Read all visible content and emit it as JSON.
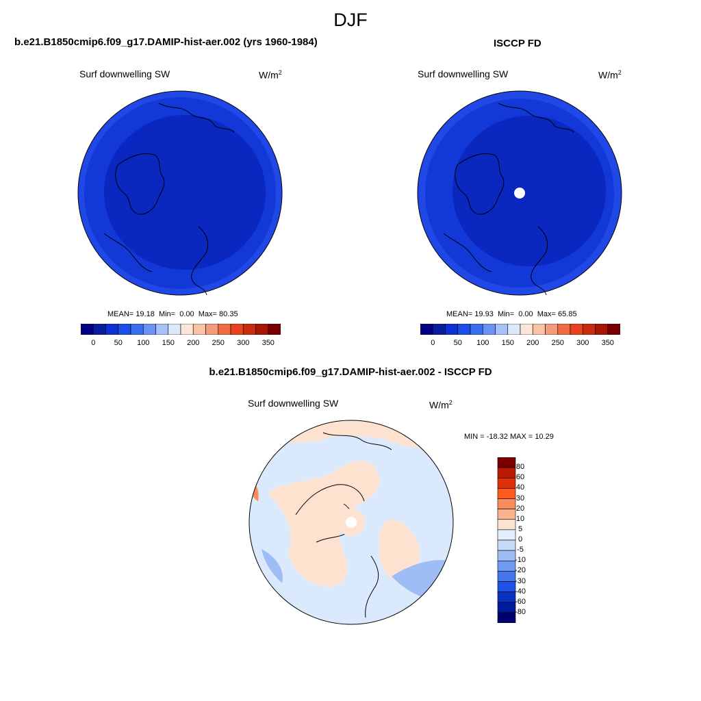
{
  "season": "DJF",
  "units": {
    "base": "W/m",
    "exp": "2"
  },
  "colors": {
    "abs_scale": [
      "#000080",
      "#0a1ca0",
      "#0e32d0",
      "#1a4fe8",
      "#3a6df0",
      "#6a93f5",
      "#a7c0f7",
      "#dce8fb",
      "#fde6d8",
      "#f9c3a6",
      "#f59b77",
      "#f06a45",
      "#e8431f",
      "#cc2a0c",
      "#a81505",
      "#7a0000"
    ],
    "diff_scale": [
      "#7a0000",
      "#b81a02",
      "#e0300a",
      "#ff5a1e",
      "#fb8c5c",
      "#f9b28e",
      "#fde3cf",
      "#e4efff",
      "#c6dafa",
      "#9ebdf5",
      "#6e9af0",
      "#4575ea",
      "#1f52e3",
      "#0a32c0",
      "#001a99",
      "#000070"
    ]
  },
  "panels": [
    {
      "title": "b.e21.B1850cmip6.f09_g17.DAMIP-hist-aer.002 (yrs 1960-1984)",
      "variable": "Surf downwelling SW",
      "mean": "19.18",
      "min": "0.00",
      "max": "80.35",
      "labels": {
        "mean": "MEAN=",
        "min": "Min=",
        "max": "Max="
      }
    },
    {
      "title": "ISCCP FD",
      "variable": "Surf downwelling SW",
      "mean": "19.93",
      "min": "0.00",
      "max": "65.85",
      "labels": {
        "mean": "MEAN=",
        "min": "Min=",
        "max": "Max="
      }
    }
  ],
  "abs_ticks": [
    "0",
    "50",
    "100",
    "150",
    "200",
    "250",
    "300",
    "350"
  ],
  "diff_panel": {
    "title": "b.e21.B1850cmip6.f09_g17.DAMIP-hist-aer.002 - ISCCP FD",
    "variable": "Surf downwelling SW",
    "min_label": "MIN = -18.32 MAX =  10.29",
    "levels": [
      "80",
      "60",
      "40",
      "30",
      "20",
      "10",
      "5",
      "0",
      "-5",
      "-10",
      "-20",
      "-30",
      "-40",
      "-60",
      "-80"
    ]
  }
}
